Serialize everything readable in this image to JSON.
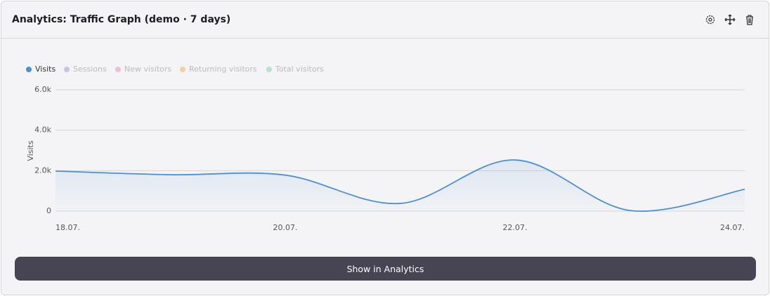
{
  "header": {
    "title": "Analytics: Traffic Graph (demo · 7 days)"
  },
  "chart_data": {
    "type": "line",
    "categories": [
      "18.07.",
      null,
      "20.07.",
      null,
      "22.07.",
      null,
      "24.07."
    ],
    "series": [
      {
        "name": "Visits",
        "color": "#4a90d9",
        "values": [
          1980,
          1800,
          1780,
          380,
          2530,
          30,
          1080
        ]
      }
    ],
    "legend": [
      {
        "name": "Visits",
        "color": "#4a90d9",
        "active": true
      },
      {
        "name": "Sessions",
        "color": "#c9c2e6",
        "active": false
      },
      {
        "name": "New visitors",
        "color": "#f0bcd6",
        "active": false
      },
      {
        "name": "Returning visitors",
        "color": "#f5cfa6",
        "active": false
      },
      {
        "name": "Total visitors",
        "color": "#b6e3cd",
        "active": false
      }
    ],
    "ylabel": "Visits",
    "ylim": [
      0,
      6000
    ],
    "yticks": [
      0,
      {
        "value": 2000,
        "label": "2.0k"
      },
      {
        "value": 4000,
        "label": "4.0k"
      },
      {
        "value": 6000,
        "label": "6.0k"
      }
    ],
    "grid": true
  },
  "button": {
    "label": "Show in Analytics"
  }
}
